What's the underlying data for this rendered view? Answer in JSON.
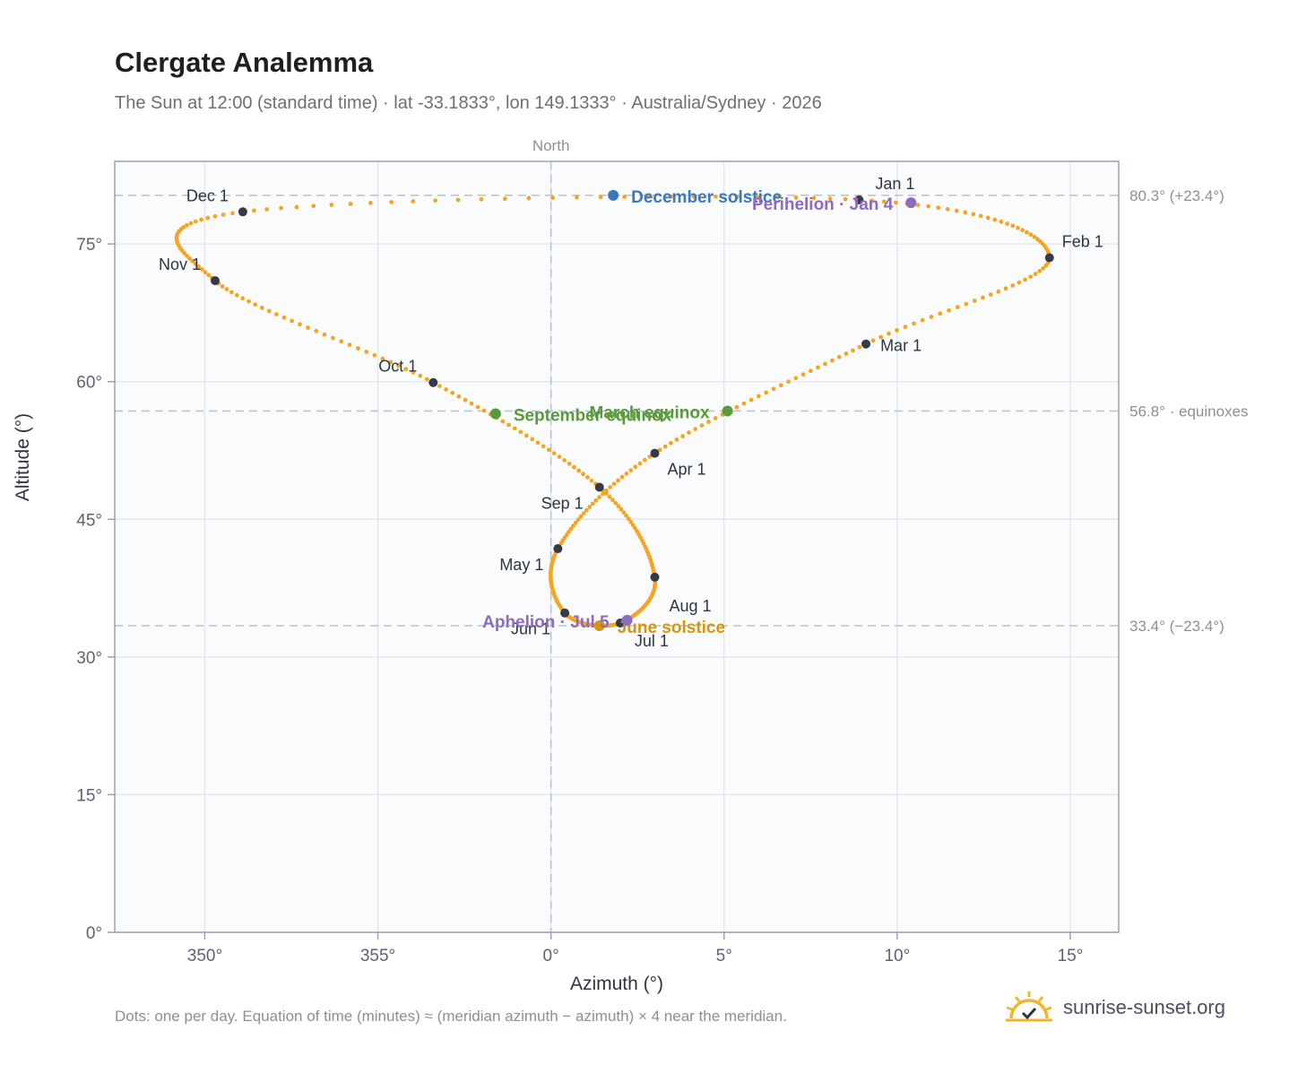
{
  "header": {
    "title": "Clergate Analemma",
    "subtitle": "The Sun at 12:00 (standard time) · lat -33.1833°, lon 149.1333° · Australia/Sydney · 2026"
  },
  "footer": {
    "note": "Dots: one per day. Equation of time (minutes) ≈ (meridian azimuth − azimuth) × 4 near the meridian.",
    "brand": "sunrise-sunset.org",
    "brand_icon": "sun-logo-icon"
  },
  "chart_data": {
    "type": "scatter",
    "xlabel": "Azimuth (°)",
    "ylabel": "Altitude (°)",
    "xlim": [
      347.4,
      16.4
    ],
    "ylim": [
      0,
      84
    ],
    "x_wraps_at_360": true,
    "x_ticks": [
      {
        "value": 350,
        "label": "350°"
      },
      {
        "value": 355,
        "label": "355°"
      },
      {
        "value": 0,
        "label": "0°"
      },
      {
        "value": 5,
        "label": "5°"
      },
      {
        "value": 10,
        "label": "10°"
      },
      {
        "value": 15,
        "label": "15°"
      }
    ],
    "y_ticks": [
      {
        "value": 0,
        "label": "0°"
      },
      {
        "value": 15,
        "label": "15°"
      },
      {
        "value": 30,
        "label": "30°"
      },
      {
        "value": 45,
        "label": "45°"
      },
      {
        "value": 60,
        "label": "60°"
      },
      {
        "value": 75,
        "label": "75°"
      }
    ],
    "grid": true,
    "north_marker": {
      "value": 0,
      "label": "North"
    },
    "reference_lines": [
      {
        "altitude": 80.3,
        "label": "80.3° (+23.4°)"
      },
      {
        "altitude": 56.8,
        "label": "56.8° · equinoxes"
      },
      {
        "altitude": 33.4,
        "label": "33.4° (−23.4°)"
      }
    ],
    "month_markers": [
      {
        "label": "Jan 1",
        "azimuth": 8.9,
        "altitude": 79.8
      },
      {
        "label": "Feb 1",
        "azimuth": 14.4,
        "altitude": 73.5
      },
      {
        "label": "Mar 1",
        "azimuth": 9.1,
        "altitude": 64.1
      },
      {
        "label": "Apr 1",
        "azimuth": 3.0,
        "altitude": 52.2
      },
      {
        "label": "May 1",
        "azimuth": 0.2,
        "altitude": 41.8
      },
      {
        "label": "Jun 1",
        "azimuth": 0.4,
        "altitude": 34.8
      },
      {
        "label": "Jul 1",
        "azimuth": 2.0,
        "altitude": 33.7
      },
      {
        "label": "Aug 1",
        "azimuth": 3.0,
        "altitude": 38.7
      },
      {
        "label": "Sep 1",
        "azimuth": 1.4,
        "altitude": 48.5
      },
      {
        "label": "Oct 1",
        "azimuth": 356.6,
        "altitude": 59.9
      },
      {
        "label": "Nov 1",
        "azimuth": 350.3,
        "altitude": 71.0
      },
      {
        "label": "Dec 1",
        "azimuth": 351.1,
        "altitude": 78.5
      }
    ],
    "events": [
      {
        "label": "December solstice",
        "azimuth": 1.8,
        "altitude": 80.3,
        "color": "#3a78b8"
      },
      {
        "label": "Perihelion · Jan 4",
        "azimuth": 10.4,
        "altitude": 79.5,
        "color": "#8e6bbf"
      },
      {
        "label": "March equinox",
        "azimuth": 5.1,
        "altitude": 56.8,
        "color": "#5a9a3a"
      },
      {
        "label": "September equinox",
        "azimuth": 358.4,
        "altitude": 56.5,
        "color": "#5a9a3a"
      },
      {
        "label": "June solstice",
        "azimuth": 1.4,
        "altitude": 33.4,
        "color": "#d8950f"
      },
      {
        "label": "Aphelion · Jul 5",
        "azimuth": 2.2,
        "altitude": 34.0,
        "color": "#8e6bbf"
      }
    ],
    "daily_points_description": "one dot per day",
    "curve_color": "#f4a623",
    "marker_color": "#343a46"
  }
}
